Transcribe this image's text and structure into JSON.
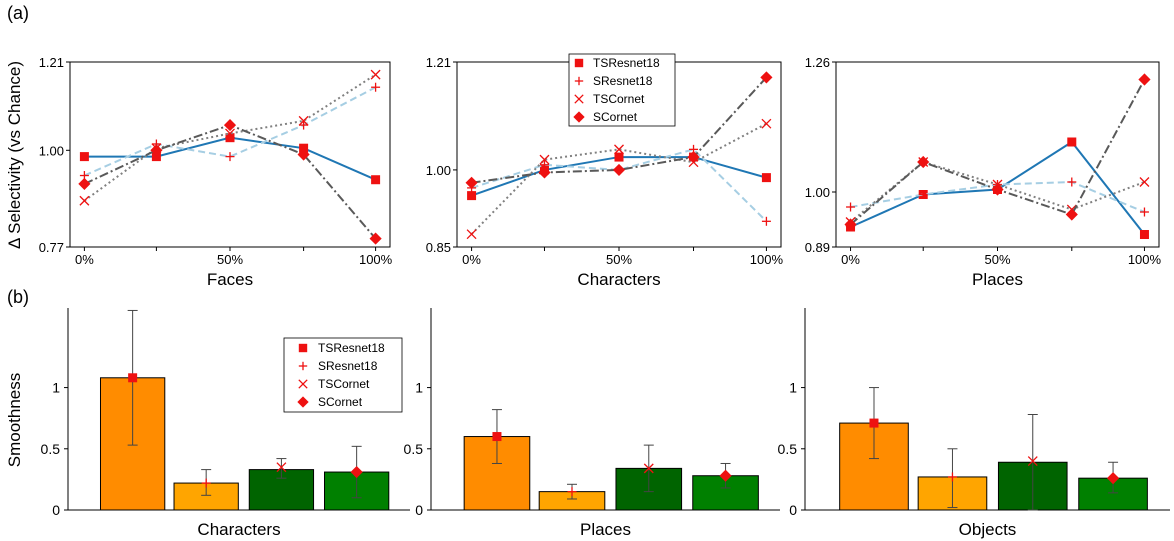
{
  "figure": {
    "label_a": "(a)",
    "label_b": "(b)",
    "ylabel_a": "Δ Selectivity (vs Chance)",
    "ylabel_b": "Smoothness"
  },
  "legend_items": [
    {
      "label": "TSResnet18",
      "marker": "square"
    },
    {
      "label": "SResnet18",
      "marker": "plus"
    },
    {
      "label": "TSCornet",
      "marker": "x"
    },
    {
      "label": "SCornet",
      "marker": "diamond"
    }
  ],
  "series_styles": [
    {
      "name": "TSResnet18",
      "color": "#1f77b4",
      "dash": "none",
      "width": 2
    },
    {
      "name": "SResnet18",
      "color": "#a6cee3",
      "dash": "7,4",
      "width": 2
    },
    {
      "name": "TSCornet",
      "color": "#808080",
      "dash": "2,3",
      "width": 2
    },
    {
      "name": "SCornet",
      "color": "#595959",
      "dash": "9,3,2,3",
      "width": 2
    }
  ],
  "bar_colors": [
    "#ff8c00",
    "#ffa500",
    "#006400",
    "#008000"
  ],
  "marker_color": "#ee1111",
  "chart_data": [
    {
      "type": "line",
      "xlabel": "Faces",
      "categories": [
        "0%",
        "",
        "50%",
        "",
        "100%"
      ],
      "tick_labels": [
        "0%",
        "50%",
        "100%"
      ],
      "yticks": [
        "1.21",
        "1.00",
        "0.77"
      ],
      "ylim": [
        0.77,
        1.21
      ],
      "series": [
        {
          "name": "TSResnet18",
          "values": [
            0.985,
            0.985,
            1.03,
            1.005,
            0.93
          ]
        },
        {
          "name": "SResnet18",
          "values": [
            0.94,
            1.015,
            0.985,
            1.06,
            1.15
          ]
        },
        {
          "name": "TSCornet",
          "values": [
            0.88,
            1.005,
            1.04,
            1.07,
            1.18
          ]
        },
        {
          "name": "SCornet",
          "values": [
            0.92,
            1.0,
            1.06,
            0.99,
            0.79
          ]
        }
      ]
    },
    {
      "type": "line",
      "xlabel": "Characters",
      "categories": [
        "0%",
        "",
        "50%",
        "",
        "100%"
      ],
      "tick_labels": [
        "0%",
        "50%",
        "100%"
      ],
      "yticks": [
        "1.21",
        "1.00",
        "0.85"
      ],
      "ylim": [
        0.85,
        1.21
      ],
      "series": [
        {
          "name": "TSResnet18",
          "values": [
            0.95,
            1.0,
            1.025,
            1.025,
            0.985
          ]
        },
        {
          "name": "SResnet18",
          "values": [
            0.965,
            1.01,
            1.0,
            1.04,
            0.9
          ]
        },
        {
          "name": "TSCornet",
          "values": [
            0.875,
            1.02,
            1.04,
            1.015,
            1.09
          ]
        },
        {
          "name": "SCornet",
          "values": [
            0.975,
            0.995,
            1.0,
            1.025,
            1.18
          ]
        }
      ],
      "legend": "top-center"
    },
    {
      "type": "line",
      "xlabel": "Places",
      "categories": [
        "0%",
        "",
        "50%",
        "",
        "100%"
      ],
      "tick_labels": [
        "0%",
        "50%",
        "100%"
      ],
      "yticks": [
        "1.26",
        "1.00",
        "0.89"
      ],
      "ylim": [
        0.89,
        1.26
      ],
      "series": [
        {
          "name": "TSResnet18",
          "values": [
            0.93,
            0.995,
            1.005,
            1.1,
            0.915
          ]
        },
        {
          "name": "SResnet18",
          "values": [
            0.97,
            0.995,
            1.015,
            1.02,
            0.96
          ]
        },
        {
          "name": "TSCornet",
          "values": [
            0.94,
            1.06,
            1.015,
            0.965,
            1.02
          ]
        },
        {
          "name": "SCornet",
          "values": [
            0.935,
            1.06,
            1.005,
            0.955,
            1.225
          ]
        }
      ]
    },
    {
      "type": "bar",
      "xlabel": "Characters",
      "yticks": [
        "1",
        "0.5",
        "0"
      ],
      "ylim": [
        0,
        1.65
      ],
      "bars": [
        {
          "value": 1.08,
          "err_low": 0.53,
          "err_high": 1.63,
          "marker": "square",
          "marker_value": 1.08
        },
        {
          "value": 0.22,
          "err_low": 0.12,
          "err_high": 0.33,
          "marker": "plus",
          "marker_value": 0.22
        },
        {
          "value": 0.33,
          "err_low": 0.26,
          "err_high": 0.42,
          "marker": "x",
          "marker_value": 0.35
        },
        {
          "value": 0.31,
          "err_low": 0.1,
          "err_high": 0.52,
          "marker": "diamond",
          "marker_value": 0.31
        }
      ],
      "legend": "top-right"
    },
    {
      "type": "bar",
      "xlabel": "Places",
      "yticks": [
        "1",
        "0.5",
        "0"
      ],
      "ylim": [
        0,
        1.65
      ],
      "bars": [
        {
          "value": 0.6,
          "err_low": 0.38,
          "err_high": 0.82,
          "marker": "square",
          "marker_value": 0.6
        },
        {
          "value": 0.15,
          "err_low": 0.09,
          "err_high": 0.21,
          "marker": "plus",
          "marker_value": 0.15
        },
        {
          "value": 0.34,
          "err_low": 0.15,
          "err_high": 0.53,
          "marker": "x",
          "marker_value": 0.34
        },
        {
          "value": 0.28,
          "err_low": 0.18,
          "err_high": 0.38,
          "marker": "diamond",
          "marker_value": 0.28
        }
      ]
    },
    {
      "type": "bar",
      "xlabel": "Objects",
      "yticks": [
        "1",
        "0.5",
        "0"
      ],
      "ylim": [
        0,
        1.65
      ],
      "bars": [
        {
          "value": 0.71,
          "err_low": 0.42,
          "err_high": 1.0,
          "marker": "square",
          "marker_value": 0.71
        },
        {
          "value": 0.27,
          "err_low": 0.02,
          "err_high": 0.5,
          "marker": "plus",
          "marker_value": 0.27
        },
        {
          "value": 0.39,
          "err_low": 0.0,
          "err_high": 0.78,
          "marker": "x",
          "marker_value": 0.4
        },
        {
          "value": 0.26,
          "err_low": 0.14,
          "err_high": 0.39,
          "marker": "diamond",
          "marker_value": 0.26
        }
      ]
    }
  ]
}
